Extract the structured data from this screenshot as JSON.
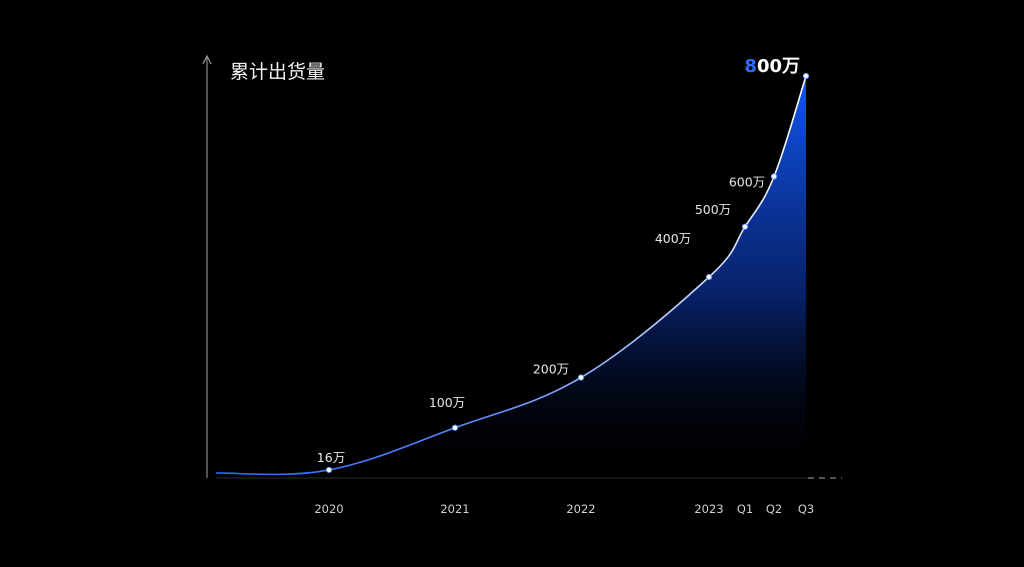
{
  "chart_data": {
    "type": "area",
    "ylabel": "累计出货量",
    "x_ticks": [
      "2020",
      "2021",
      "2022",
      "2023",
      "Q1",
      "Q2",
      "Q3"
    ],
    "points": [
      {
        "x": "2020",
        "value": 16,
        "label": "16万"
      },
      {
        "x": "2021",
        "value": 100,
        "label": "100万"
      },
      {
        "x": "2022",
        "value": 200,
        "label": "200万"
      },
      {
        "x": "2023",
        "value": 400,
        "label": "400万"
      },
      {
        "x": "Q1",
        "value": 500,
        "label": "500万"
      },
      {
        "x": "Q2",
        "value": 600,
        "label": "600万"
      },
      {
        "x": "Q3",
        "value": 800,
        "label_highlight": "8",
        "label_rest": "00万"
      }
    ],
    "ylim": [
      0,
      800
    ],
    "grid": false,
    "legend": "none",
    "colors": {
      "background": "#000000",
      "fill_top": "#1056f0",
      "line_start": "#2a63ff",
      "line_end": "#ffffff",
      "axis": "#9a9a9a",
      "highlight_text": "#2f6bff",
      "label_text": "#e6e6e6"
    }
  }
}
